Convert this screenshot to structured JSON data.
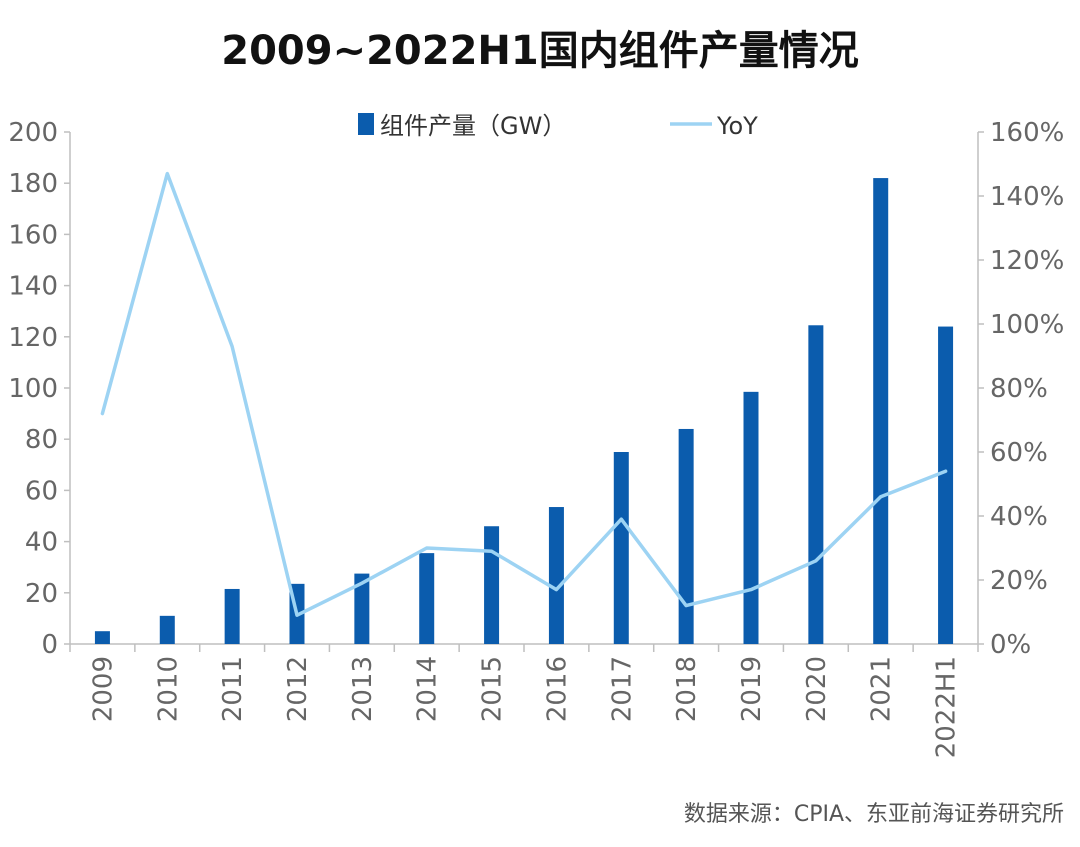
{
  "chart_data": {
    "type": "bar",
    "title": "2009~2022H1国内组件产量情况",
    "source": "数据来源：CPIA、东亚前海证券研究所",
    "categories": [
      "2009",
      "2010",
      "2011",
      "2012",
      "2013",
      "2014",
      "2015",
      "2016",
      "2017",
      "2018",
      "2019",
      "2020",
      "2021",
      "2022H1"
    ],
    "series": [
      {
        "name": "组件产量（GW）",
        "type": "bar",
        "axis": "left",
        "color": "#0b5cad",
        "values": [
          5,
          11,
          21.5,
          23.5,
          27.5,
          35.5,
          46,
          53.5,
          75,
          84,
          98.5,
          124.5,
          182,
          124
        ]
      },
      {
        "name": "YoY",
        "type": "line",
        "axis": "right",
        "color": "#9dd3f3",
        "values": [
          72,
          147,
          93,
          9,
          19,
          30,
          29,
          17,
          39,
          12,
          17,
          26,
          46,
          54
        ]
      }
    ],
    "left_axis": {
      "min": 0,
      "max": 200,
      "ticks": [
        "0",
        "20",
        "40",
        "60",
        "80",
        "100",
        "120",
        "140",
        "160",
        "180",
        "200"
      ]
    },
    "right_axis": {
      "min": 0,
      "max": 160,
      "ticks": [
        "0%",
        "20%",
        "40%",
        "60%",
        "80%",
        "100%",
        "120%",
        "140%",
        "160%"
      ]
    },
    "legend": "top-center",
    "grid": false
  }
}
